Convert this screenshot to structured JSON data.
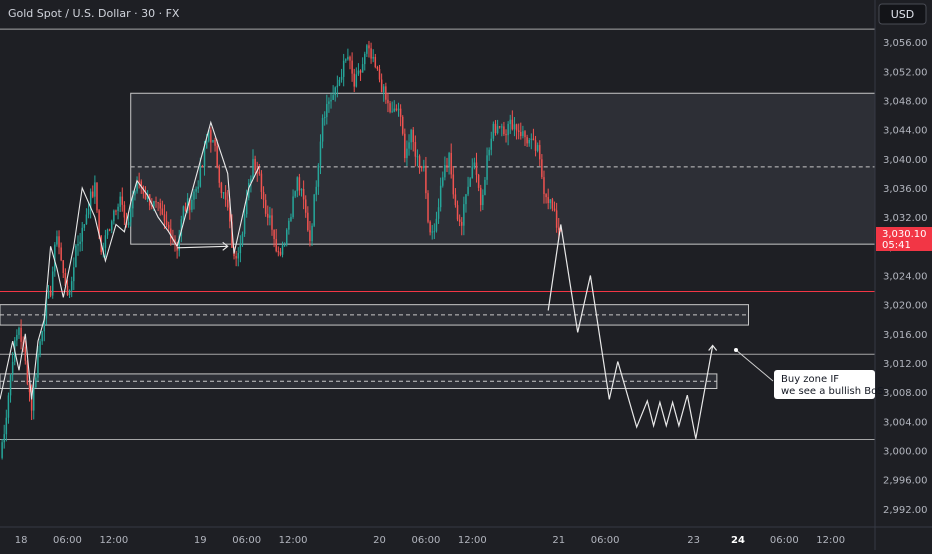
{
  "header": {
    "title": "Gold Spot / U.S. Dollar · 30 · FX"
  },
  "currency_button": {
    "label": "USD"
  },
  "price_tag": {
    "price": "3,030.10",
    "countdown": "05:41"
  },
  "annotation": {
    "line1": "Buy zone IF",
    "line2": "we see a bullish BoS"
  },
  "colors": {
    "background": "#1e1f24",
    "up_candle": "#26a69a",
    "down_candle": "#ef5350",
    "zone_fill": "#3b3d45",
    "level_line": "#c8c8c8",
    "price_tag": "#f23645",
    "red_line": "#f23645"
  },
  "chart_data": {
    "type": "candlestick",
    "y_axis": {
      "range": [
        2989.5,
        3058.5
      ],
      "ticks": [
        "3,056.00",
        "3,052.00",
        "3,048.00",
        "3,044.00",
        "3,040.00",
        "3,036.00",
        "3,032.00",
        "3,028.00",
        "3,024.00",
        "3,020.00",
        "3,016.00",
        "3,012.00",
        "3,008.00",
        "3,004.00",
        "3,000.00",
        "2,996.00",
        "2,992.00"
      ],
      "tick_values": [
        3056,
        3052,
        3048,
        3044,
        3040,
        3036,
        3032,
        3028,
        3024,
        3020,
        3016,
        3012,
        3008,
        3004,
        3000,
        2996,
        2992
      ]
    },
    "x_axis": {
      "range_bars": [
        0,
        415
      ],
      "ticks": [
        {
          "label": "18",
          "bar": 10,
          "bold": false
        },
        {
          "label": "06:00",
          "bar": 32,
          "bold": false
        },
        {
          "label": "12:00",
          "bar": 54,
          "bold": false
        },
        {
          "label": "19",
          "bar": 95,
          "bold": false
        },
        {
          "label": "06:00",
          "bar": 117,
          "bold": false
        },
        {
          "label": "12:00",
          "bar": 139,
          "bold": false
        },
        {
          "label": "20",
          "bar": 180,
          "bold": false
        },
        {
          "label": "06:00",
          "bar": 202,
          "bold": false
        },
        {
          "label": "12:00",
          "bar": 224,
          "bold": false
        },
        {
          "label": "21",
          "bar": 265,
          "bold": false
        },
        {
          "label": "06:00",
          "bar": 287,
          "bold": false
        },
        {
          "label": "23",
          "bar": 329,
          "bold": false
        },
        {
          "label": "24",
          "bar": 350,
          "bold": true
        },
        {
          "label": "06:00",
          "bar": 372,
          "bold": false
        },
        {
          "label": "12:00",
          "bar": 394,
          "bold": false
        }
      ]
    },
    "last_price": 3030.1,
    "price_path": [
      [
        0,
        2999
      ],
      [
        3,
        3005
      ],
      [
        6,
        3013
      ],
      [
        9,
        3017
      ],
      [
        12,
        3012
      ],
      [
        15,
        3006
      ],
      [
        18,
        3013
      ],
      [
        21,
        3019
      ],
      [
        24,
        3022
      ],
      [
        27,
        3030
      ],
      [
        30,
        3024
      ],
      [
        33,
        3021
      ],
      [
        36,
        3028
      ],
      [
        39,
        3030
      ],
      [
        42,
        3034
      ],
      [
        45,
        3036
      ],
      [
        48,
        3027
      ],
      [
        51,
        3030
      ],
      [
        54,
        3033
      ],
      [
        57,
        3035
      ],
      [
        60,
        3030
      ],
      [
        63,
        3035
      ],
      [
        66,
        3037
      ],
      [
        69,
        3035
      ],
      [
        72,
        3034
      ],
      [
        75,
        3033
      ],
      [
        78,
        3031
      ],
      [
        81,
        3030
      ],
      [
        84,
        3028
      ],
      [
        87,
        3033
      ],
      [
        90,
        3034
      ],
      [
        93,
        3036
      ],
      [
        96,
        3039
      ],
      [
        99,
        3044
      ],
      [
        102,
        3041
      ],
      [
        105,
        3036
      ],
      [
        108,
        3033
      ],
      [
        111,
        3026
      ],
      [
        114,
        3029
      ],
      [
        117,
        3034
      ],
      [
        120,
        3040
      ],
      [
        123,
        3038
      ],
      [
        126,
        3033
      ],
      [
        129,
        3031
      ],
      [
        132,
        3027
      ],
      [
        135,
        3029
      ],
      [
        138,
        3033
      ],
      [
        141,
        3037
      ],
      [
        144,
        3034
      ],
      [
        147,
        3029
      ],
      [
        150,
        3037
      ],
      [
        153,
        3046
      ],
      [
        156,
        3048
      ],
      [
        159,
        3049
      ],
      [
        162,
        3052
      ],
      [
        165,
        3054
      ],
      [
        168,
        3050
      ],
      [
        171,
        3052
      ],
      [
        174,
        3055
      ],
      [
        177,
        3053
      ],
      [
        180,
        3051
      ],
      [
        183,
        3048
      ],
      [
        186,
        3046
      ],
      [
        189,
        3047
      ],
      [
        192,
        3041
      ],
      [
        195,
        3043
      ],
      [
        198,
        3040
      ],
      [
        201,
        3039
      ],
      [
        204,
        3029
      ],
      [
        207,
        3032
      ],
      [
        210,
        3038
      ],
      [
        213,
        3040
      ],
      [
        216,
        3033
      ],
      [
        219,
        3031
      ],
      [
        222,
        3037
      ],
      [
        225,
        3040
      ],
      [
        228,
        3034
      ],
      [
        231,
        3040
      ],
      [
        234,
        3044
      ],
      [
        237,
        3045
      ],
      [
        240,
        3044
      ],
      [
        243,
        3045
      ],
      [
        246,
        3044
      ],
      [
        249,
        3043
      ],
      [
        252,
        3042
      ],
      [
        255,
        3041
      ],
      [
        258,
        3036
      ],
      [
        261,
        3034
      ],
      [
        264,
        3031
      ],
      [
        266,
        3030.1
      ]
    ],
    "zones": [
      {
        "from_bar": 62,
        "to_bar": 415,
        "top": 3049,
        "bottom": 3028.3,
        "mid_dashed": 3038.9
      },
      {
        "from_bar": 0,
        "to_bar": 355,
        "top": 3020,
        "bottom": 3017.2,
        "mid_dashed": 3018.6
      },
      {
        "from_bar": 0,
        "to_bar": 340,
        "top": 3010.5,
        "bottom": 3008.5,
        "mid_dashed": 3009.5
      }
    ],
    "levels": [
      {
        "price": 3057.8,
        "from_bar": 0,
        "kind": "solid_gray"
      },
      {
        "price": 3021.8,
        "from_bar": 0,
        "kind": "solid_red"
      },
      {
        "price": 3013.2,
        "from_bar": 0,
        "kind": "solid_gray"
      },
      {
        "price": 3001.5,
        "from_bar": 0,
        "kind": "solid_gray"
      }
    ],
    "projection": [
      [
        260,
        3019.2
      ],
      [
        266,
        3031
      ],
      [
        274,
        3016.2
      ],
      [
        280,
        3024
      ],
      [
        289,
        3007
      ],
      [
        293,
        3012.2
      ],
      [
        302,
        3003.2
      ],
      [
        307,
        3006.8
      ],
      [
        310,
        3003.4
      ],
      [
        313,
        3006.6
      ],
      [
        316,
        3003.4
      ],
      [
        319,
        3006.6
      ],
      [
        322,
        3003.4
      ],
      [
        326,
        3007.6
      ],
      [
        330,
        3001.6
      ],
      [
        338,
        3014.4
      ]
    ],
    "projection_arrow_tip": [
      338,
      3014.4
    ],
    "history_paths": [
      [
        [
          0,
          3007
        ],
        [
          6,
          3015
        ],
        [
          9,
          3011
        ],
        [
          12,
          3016
        ],
        [
          15,
          3007
        ],
        [
          18,
          3015
        ],
        [
          21,
          3018
        ],
        [
          24,
          3028
        ],
        [
          27,
          3025
        ],
        [
          30,
          3021
        ],
        [
          35,
          3028
        ],
        [
          39,
          3036
        ],
        [
          45,
          3032
        ],
        [
          50,
          3026
        ],
        [
          55,
          3031
        ],
        [
          59,
          3030
        ],
        [
          62,
          3034
        ],
        [
          65,
          3037
        ],
        [
          70,
          3035
        ],
        [
          75,
          3032
        ],
        [
          80,
          3030
        ],
        [
          84,
          3028
        ]
      ],
      [
        [
          84,
          3028
        ],
        [
          100,
          3045
        ],
        [
          108,
          3038
        ],
        [
          111,
          3027
        ],
        [
          118,
          3036
        ],
        [
          123,
          3039
        ]
      ]
    ],
    "horizontal_arrow": {
      "from": [
        84,
        3027.8
      ],
      "to": [
        108,
        3028
      ]
    }
  }
}
